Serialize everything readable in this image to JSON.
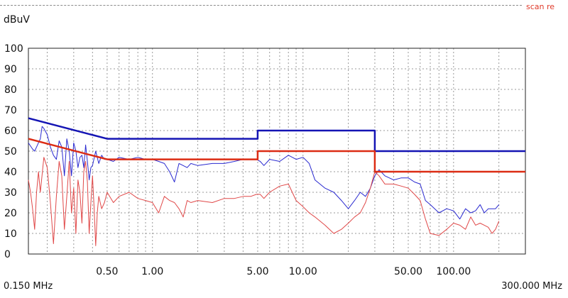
{
  "header": {
    "unit": "dBuV",
    "scan_label": "scan re"
  },
  "footer": {
    "start": "0.150 MHz",
    "stop": "300.000 MHz"
  },
  "chart_data": {
    "type": "line",
    "title": "",
    "xlabel": "",
    "ylabel": "dBuV",
    "xscale": "log",
    "xlim": [
      0.15,
      300
    ],
    "ylim": [
      0,
      100
    ],
    "grid": true,
    "yticks": [
      {
        "v": 100,
        "label": "100"
      },
      {
        "v": 90,
        "label": "90"
      },
      {
        "v": 80,
        "label": "80"
      },
      {
        "v": 70,
        "label": "70"
      },
      {
        "v": 60,
        "label": "60"
      },
      {
        "v": 50,
        "label": "50"
      },
      {
        "v": 40,
        "label": "40"
      },
      {
        "v": 30,
        "label": "30"
      },
      {
        "v": 20,
        "label": "20"
      },
      {
        "v": 10,
        "label": "10"
      },
      {
        "v": 0,
        "label": "0"
      }
    ],
    "xticks": [
      {
        "v": 0.5,
        "label": "0.50"
      },
      {
        "v": 1,
        "label": "1.00"
      },
      {
        "v": 5,
        "label": "5.00"
      },
      {
        "v": 10,
        "label": "10.00"
      },
      {
        "v": 50,
        "label": "50.00"
      },
      {
        "v": 100,
        "label": "100.00"
      }
    ],
    "series": [
      {
        "color": "#2a2ad0",
        "width": 1,
        "x": [
          0.15,
          0.16,
          0.165,
          0.17,
          0.18,
          0.185,
          0.19,
          0.2,
          0.21,
          0.22,
          0.23,
          0.24,
          0.25,
          0.26,
          0.27,
          0.28,
          0.29,
          0.3,
          0.31,
          0.32,
          0.33,
          0.34,
          0.35,
          0.36,
          0.37,
          0.38,
          0.39,
          0.4,
          0.42,
          0.44,
          0.46,
          0.48,
          0.5,
          0.55,
          0.6,
          0.7,
          0.8,
          0.9,
          1.0,
          1.1,
          1.2,
          1.3,
          1.4,
          1.5,
          1.7,
          1.8,
          2.0,
          2.5,
          3.0,
          3.5,
          4.0,
          4.5,
          4.9,
          5.2,
          5.5,
          6.0,
          7.0,
          8.0,
          9.0,
          10.0,
          11.0,
          12.0,
          14.0,
          16.0,
          18.0,
          20.0,
          22.0,
          24.0,
          26.0,
          28.0,
          30.0,
          32.0,
          35.0,
          40.0,
          45.0,
          50.0,
          55.0,
          60.0,
          65.0,
          70.0,
          80.0,
          90.0,
          100.0,
          110.0,
          120.0,
          130.0,
          140.0,
          150.0,
          160.0,
          170.0,
          180.0,
          190.0,
          200.0
        ],
        "y": [
          54,
          51,
          50,
          52,
          56,
          62,
          61,
          58,
          52,
          48,
          46,
          55,
          52,
          38,
          56,
          50,
          38,
          54,
          50,
          42,
          47,
          48,
          42,
          53,
          45,
          36,
          42,
          43,
          50,
          44,
          48,
          46,
          46,
          45,
          47,
          46,
          47,
          46,
          46,
          45,
          44,
          40,
          35,
          44,
          42,
          44,
          43,
          44,
          44,
          45,
          46,
          46,
          46,
          45,
          43,
          46,
          45,
          48,
          46,
          47,
          44,
          36,
          32,
          30,
          26,
          22,
          26,
          30,
          28,
          32,
          38,
          41,
          38,
          36,
          37,
          37,
          35,
          34,
          26,
          24,
          20,
          22,
          21,
          17,
          22,
          20,
          21,
          24,
          20,
          22,
          22,
          22,
          24
        ]
      },
      {
        "color": "#e04848",
        "width": 1,
        "x": [
          0.15,
          0.155,
          0.16,
          0.165,
          0.17,
          0.175,
          0.18,
          0.19,
          0.2,
          0.21,
          0.22,
          0.23,
          0.24,
          0.25,
          0.26,
          0.27,
          0.28,
          0.29,
          0.3,
          0.31,
          0.32,
          0.33,
          0.34,
          0.35,
          0.36,
          0.37,
          0.38,
          0.39,
          0.4,
          0.41,
          0.42,
          0.43,
          0.44,
          0.46,
          0.48,
          0.5,
          0.55,
          0.6,
          0.7,
          0.8,
          0.9,
          1.0,
          1.1,
          1.2,
          1.3,
          1.4,
          1.5,
          1.6,
          1.7,
          1.8,
          2.0,
          2.5,
          3.0,
          3.5,
          4.0,
          4.5,
          4.9,
          5.2,
          5.5,
          6.0,
          7.0,
          8.0,
          9.0,
          10.0,
          11.0,
          12.0,
          14.0,
          16.0,
          18.0,
          20.0,
          22.0,
          24.0,
          26.0,
          28.0,
          30.0,
          32.0,
          35.0,
          40.0,
          45.0,
          50.0,
          55.0,
          60.0,
          65.0,
          70.0,
          80.0,
          90.0,
          100.0,
          110.0,
          120.0,
          130.0,
          140.0,
          150.0,
          160.0,
          170.0,
          180.0,
          190.0,
          200.0
        ],
        "y": [
          36,
          30,
          22,
          12,
          30,
          40,
          30,
          47,
          42,
          25,
          5,
          28,
          45,
          38,
          12,
          28,
          45,
          20,
          32,
          10,
          36,
          30,
          15,
          40,
          45,
          35,
          10,
          25,
          38,
          22,
          4,
          20,
          28,
          22,
          25,
          30,
          25,
          28,
          30,
          27,
          26,
          25,
          20,
          28,
          26,
          25,
          22,
          18,
          26,
          25,
          26,
          25,
          27,
          27,
          28,
          28,
          29,
          29,
          27,
          30,
          33,
          34,
          26,
          23,
          20,
          18,
          14,
          10,
          12,
          15,
          18,
          20,
          25,
          32,
          40,
          38,
          34,
          34,
          33,
          32,
          29,
          26,
          17,
          10,
          9,
          12,
          15,
          14,
          12,
          18,
          14,
          15,
          14,
          13,
          10,
          12,
          16
        ]
      },
      {
        "name": "",
        "color": "#1414b4",
        "width": 2.5,
        "x": [
          0.15,
          0.5,
          0.5,
          5,
          5,
          30,
          30,
          300
        ],
        "y": [
          66,
          56,
          56,
          56,
          60,
          60,
          50,
          50
        ]
      },
      {
        "name": "",
        "color": "#dc2c14",
        "width": 2.5,
        "x": [
          0.15,
          0.5,
          0.5,
          5,
          5,
          30,
          30,
          300
        ],
        "y": [
          56,
          46,
          46,
          46,
          50,
          50,
          40,
          40
        ]
      }
    ]
  }
}
